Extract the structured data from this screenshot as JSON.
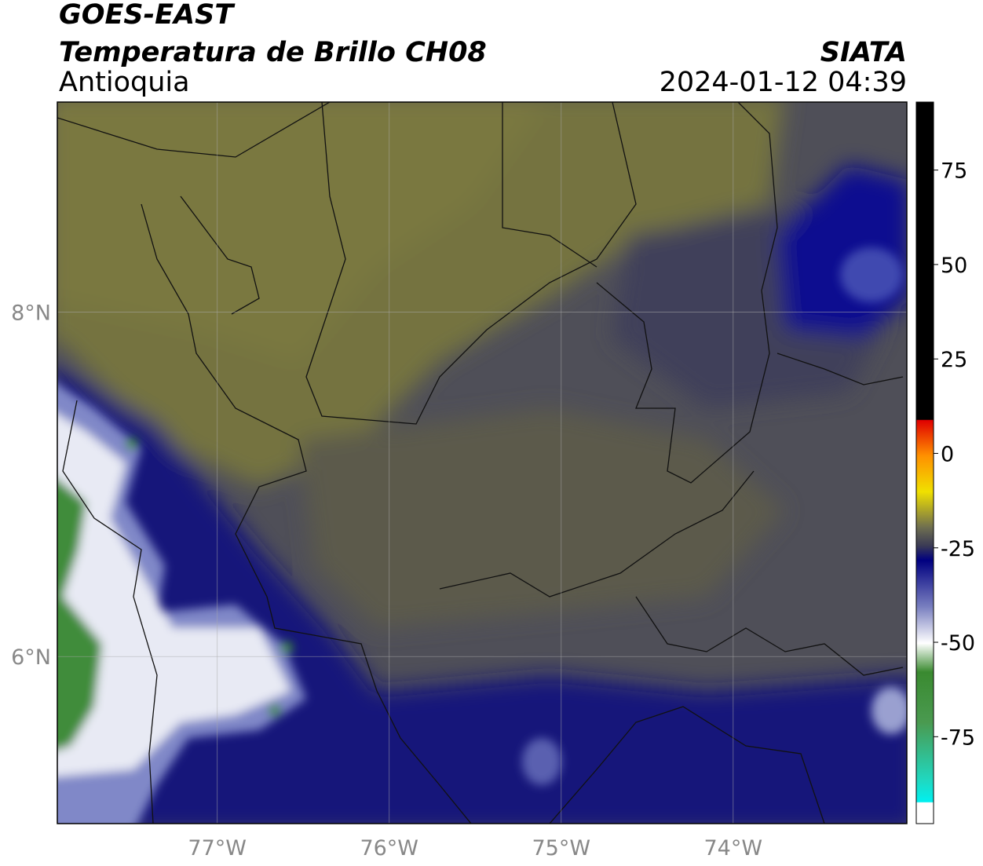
{
  "header": {
    "title": "GOES-EAST",
    "subtitle": "Temperatura de Brillo CH08",
    "region": "Antioquia",
    "source": "SIATA",
    "datetime": "2024-01-12 04:39"
  },
  "map": {
    "xlim": [
      -77.93,
      -72.99
    ],
    "ylim": [
      5.03,
      9.22
    ],
    "xticks": [
      {
        "value": -77,
        "label": "77°W"
      },
      {
        "value": -76,
        "label": "76°W"
      },
      {
        "value": -75,
        "label": "75°W"
      },
      {
        "value": -74,
        "label": "74°W"
      }
    ],
    "yticks": [
      {
        "value": 8,
        "label": "8°N"
      },
      {
        "value": 6,
        "label": "6°N"
      }
    ],
    "grid": true
  },
  "colorbar": {
    "lim": [
      -98,
      93
    ],
    "ticks": [
      75,
      50,
      25,
      0,
      -25,
      -50,
      -75
    ]
  }
}
